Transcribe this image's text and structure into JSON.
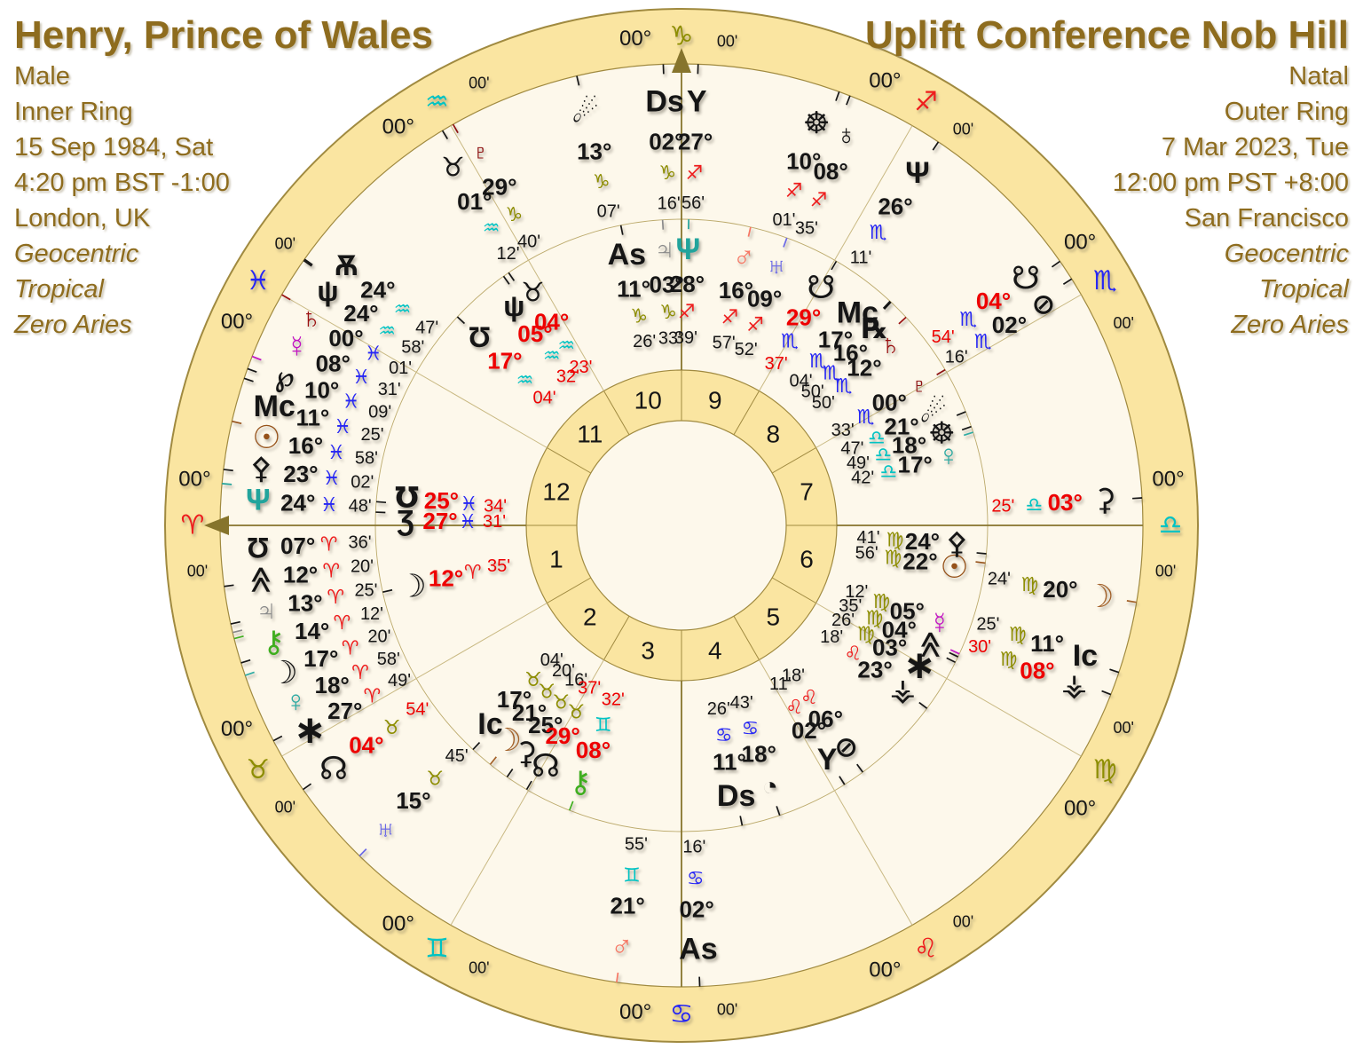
{
  "header_left": {
    "title": "Henry, Prince of Wales",
    "lines": [
      "Male",
      "Inner Ring",
      "15 Sep 1984, Sat",
      "4:20 pm BST -1:00",
      "London, UK"
    ],
    "italic_lines": [
      "Geocentric",
      "Tropical",
      "Zero Aries"
    ]
  },
  "header_right": {
    "title": "Uplift Conference Nob Hill",
    "lines": [
      "Natal",
      "Outer Ring",
      "7 Mar 2023, Tue",
      "12:00 pm PST +8:00",
      "San Francisco"
    ],
    "italic_lines": [
      "Geocentric",
      "Tropical",
      "Zero Aries"
    ]
  },
  "colors": {
    "rim_gold": "#FAE5A1",
    "rim_border": "#A08A40",
    "chart_bg": "#FDF8EB",
    "spoke": "#C9B983",
    "axis": "#86742C",
    "text": "#151515",
    "retrograde_red": "#EE0000",
    "title_brown": "#8E6C1E",
    "element_fire": "#EF1D1D",
    "element_earth": "#8D8D00",
    "element_air": "#00C3C3",
    "element_water": "#2626F5",
    "planet": {
      "sun": "#96521A",
      "moon": "#A3622A",
      "lilith": "#151515",
      "mercury": "#C313C3",
      "venus": "#2EABA3",
      "mars": "#F77663",
      "jupiter": "#8A8A8A",
      "saturn": "#9B1111",
      "uranus": "#6B69E6",
      "neptune": "#22A49C",
      "psiBlack": "#151515",
      "pluto": "#8E1212",
      "chiron": "#3FAE1F",
      "node": "#151515",
      "snode": "#151515",
      "ceres": "#151515",
      "pallas": "#151515",
      "vesta": "#151515",
      "comet": "#151515",
      "wheel": "#151515",
      "earth": "#151515",
      "slash": "#151515",
      "qtr": "#151515",
      "yg": "#151515",
      "mho": "#151515",
      "ezh": "#151515",
      "shell": "#151515",
      "psiSm": "#151515",
      "horn": "#151515",
      "dancer": "#151515",
      "chev": "#151515",
      "star": "#151515",
      "wp": "#151515",
      "rx": "#151515",
      "As": "#151515",
      "Ds": "#151515",
      "Mc": "#151515",
      "Ic": "#151515"
    }
  },
  "wheel": {
    "rim_degree_label": "00°",
    "rim_minute_label": "00'",
    "houses": [
      "1",
      "2",
      "3",
      "4",
      "5",
      "6",
      "7",
      "8",
      "9",
      "10",
      "11",
      "12"
    ],
    "signs": [
      {
        "id": "ari",
        "name": "aries",
        "element": "fire"
      },
      {
        "id": "tau",
        "name": "taurus",
        "element": "earth"
      },
      {
        "id": "gem",
        "name": "gemini",
        "element": "air"
      },
      {
        "id": "can",
        "name": "cancer",
        "element": "water"
      },
      {
        "id": "leo",
        "name": "leo",
        "element": "fire"
      },
      {
        "id": "vir",
        "name": "virgo",
        "element": "earth"
      },
      {
        "id": "lib",
        "name": "libra",
        "element": "air"
      },
      {
        "id": "sco",
        "name": "scorpio",
        "element": "water"
      },
      {
        "id": "sag",
        "name": "sagittarius",
        "element": "fire"
      },
      {
        "id": "cap",
        "name": "capricorn",
        "element": "earth"
      },
      {
        "id": "aqu",
        "name": "aquarius",
        "element": "air"
      },
      {
        "id": "pis",
        "name": "pisces",
        "element": "water"
      }
    ],
    "outer_ring": [
      {
        "p": "comet",
        "d": "13",
        "s": "cap",
        "m": "07"
      },
      {
        "p": "Ds",
        "d": "02",
        "s": "cap",
        "m": "16"
      },
      {
        "p": "pluto",
        "d": "29",
        "s": "cap",
        "m": "40"
      },
      {
        "p": "yg",
        "d": "27",
        "s": "sag",
        "m": "56"
      },
      {
        "p": "wheel",
        "d": "10",
        "s": "sag",
        "m": "01"
      },
      {
        "p": "earth",
        "d": "08",
        "s": "sag",
        "m": "35"
      },
      {
        "p": "psiBlack",
        "d": "26",
        "s": "sco",
        "m": "11"
      },
      {
        "p": "snode",
        "d": "04",
        "s": "sco",
        "m": "54",
        "r": true
      },
      {
        "p": "slash",
        "d": "02",
        "s": "sco",
        "m": "16"
      },
      {
        "p": "ceres",
        "d": "03",
        "s": "lib",
        "m": "25",
        "r": true
      },
      {
        "p": "moon",
        "d": "20",
        "s": "vir",
        "m": "24"
      },
      {
        "p": "Ic",
        "d": "11",
        "s": "vir",
        "m": "25"
      },
      {
        "p": "vesta",
        "d": "08",
        "s": "vir",
        "m": "30",
        "r": true
      },
      {
        "p": "As",
        "d": "02",
        "s": "can",
        "m": "16"
      },
      {
        "p": "mars",
        "d": "21",
        "s": "gem",
        "m": "55"
      },
      {
        "p": "uranus",
        "d": "15",
        "s": "tau",
        "m": "45"
      },
      {
        "p": "node",
        "d": "04",
        "s": "tau",
        "m": "54",
        "r": true
      },
      {
        "p": "star",
        "d": "27",
        "s": "ari",
        "m": "49"
      },
      {
        "p": "venus",
        "d": "18",
        "s": "ari",
        "m": "58"
      },
      {
        "p": "lilith",
        "d": "17",
        "s": "ari",
        "m": "20"
      },
      {
        "p": "chiron",
        "d": "14",
        "s": "ari",
        "m": "12"
      },
      {
        "p": "jupiter",
        "d": "13",
        "s": "ari",
        "m": "25"
      },
      {
        "p": "chev",
        "d": "12",
        "s": "ari",
        "m": "20"
      },
      {
        "p": "shell",
        "d": "07",
        "s": "ari",
        "m": "36"
      },
      {
        "p": "neptune",
        "d": "24",
        "s": "pis",
        "m": "48"
      },
      {
        "p": "pallas",
        "d": "23",
        "s": "pis",
        "m": "02"
      },
      {
        "p": "sun",
        "d": "16",
        "s": "pis",
        "m": "58"
      },
      {
        "p": "Mc",
        "d": "11",
        "s": "pis",
        "m": "25"
      },
      {
        "p": "wp",
        "d": "10",
        "s": "pis",
        "m": "09"
      },
      {
        "p": "mercury",
        "d": "08",
        "s": "pis",
        "m": "31"
      },
      {
        "p": "saturn",
        "d": "00",
        "s": "pis",
        "m": "01"
      },
      {
        "p": "dancer",
        "d": "24",
        "s": "aqu",
        "m": "47"
      },
      {
        "p": "psiSm",
        "d": "24",
        "s": "aqu",
        "m": "58"
      },
      {
        "p": "horn",
        "d": "01",
        "s": "aqu",
        "m": "12"
      }
    ],
    "inner_ring": [
      {
        "p": "As",
        "d": "11",
        "s": "cap",
        "m": "26"
      },
      {
        "p": "jupiter",
        "d": "03",
        "s": "cap",
        "m": "33"
      },
      {
        "p": "neptune",
        "d": "28",
        "s": "sag",
        "m": "39"
      },
      {
        "p": "mars",
        "d": "16",
        "s": "sag",
        "m": "57"
      },
      {
        "p": "uranus",
        "d": "09",
        "s": "sag",
        "m": "52"
      },
      {
        "p": "snode",
        "d": "29",
        "s": "sco",
        "m": "37",
        "r": true
      },
      {
        "p": "Mc",
        "d": "17",
        "s": "sco",
        "m": "04"
      },
      {
        "p": "rx",
        "d": "16",
        "s": "sco",
        "m": "50"
      },
      {
        "p": "saturn",
        "d": "12",
        "s": "sco",
        "m": "50"
      },
      {
        "p": "pluto",
        "d": "00",
        "s": "sco",
        "m": "33"
      },
      {
        "p": "comet",
        "d": "21",
        "s": "lib",
        "m": "47"
      },
      {
        "p": "wheel",
        "d": "18",
        "s": "lib",
        "m": "49"
      },
      {
        "p": "venus",
        "d": "17",
        "s": "lib",
        "m": "42"
      },
      {
        "p": "pallas",
        "d": "24",
        "s": "vir",
        "m": "41"
      },
      {
        "p": "sun",
        "d": "22",
        "s": "vir",
        "m": "56"
      },
      {
        "p": "mercury",
        "d": "05",
        "s": "vir",
        "m": "12"
      },
      {
        "p": "chev",
        "d": "04",
        "s": "vir",
        "m": "35"
      },
      {
        "p": "star",
        "d": "03",
        "s": "vir",
        "m": "26"
      },
      {
        "p": "vesta",
        "d": "23",
        "s": "leo",
        "m": "18"
      },
      {
        "p": "slash",
        "d": "06",
        "s": "leo",
        "m": "18"
      },
      {
        "p": "yg",
        "d": "02",
        "s": "leo",
        "m": "11"
      },
      {
        "p": "qtr",
        "d": "18",
        "s": "can",
        "m": "43"
      },
      {
        "p": "Ds",
        "d": "11",
        "s": "can",
        "m": "26"
      },
      {
        "p": "chiron",
        "d": "08",
        "s": "gem",
        "m": "32",
        "r": true
      },
      {
        "p": "node",
        "d": "29",
        "s": "tau",
        "m": "37",
        "r": true
      },
      {
        "p": "ceres",
        "d": "25",
        "s": "tau",
        "m": "16"
      },
      {
        "p": "moon",
        "d": "21",
        "s": "tau",
        "m": "20"
      },
      {
        "p": "Ic",
        "d": "17",
        "s": "tau",
        "m": "04"
      },
      {
        "p": "lilith",
        "d": "12",
        "s": "ari",
        "m": "35",
        "r": true
      },
      {
        "p": "ezh",
        "d": "27",
        "s": "pis",
        "m": "31",
        "r": true
      },
      {
        "p": "mho",
        "d": "25",
        "s": "pis",
        "m": "34",
        "r": true
      },
      {
        "p": "shell",
        "d": "17",
        "s": "aqu",
        "m": "04",
        "r": true
      },
      {
        "p": "psiSm",
        "d": "05",
        "s": "aqu",
        "m": "32",
        "r": true
      },
      {
        "p": "horn",
        "d": "04",
        "s": "aqu",
        "m": "23",
        "r": true
      }
    ]
  }
}
